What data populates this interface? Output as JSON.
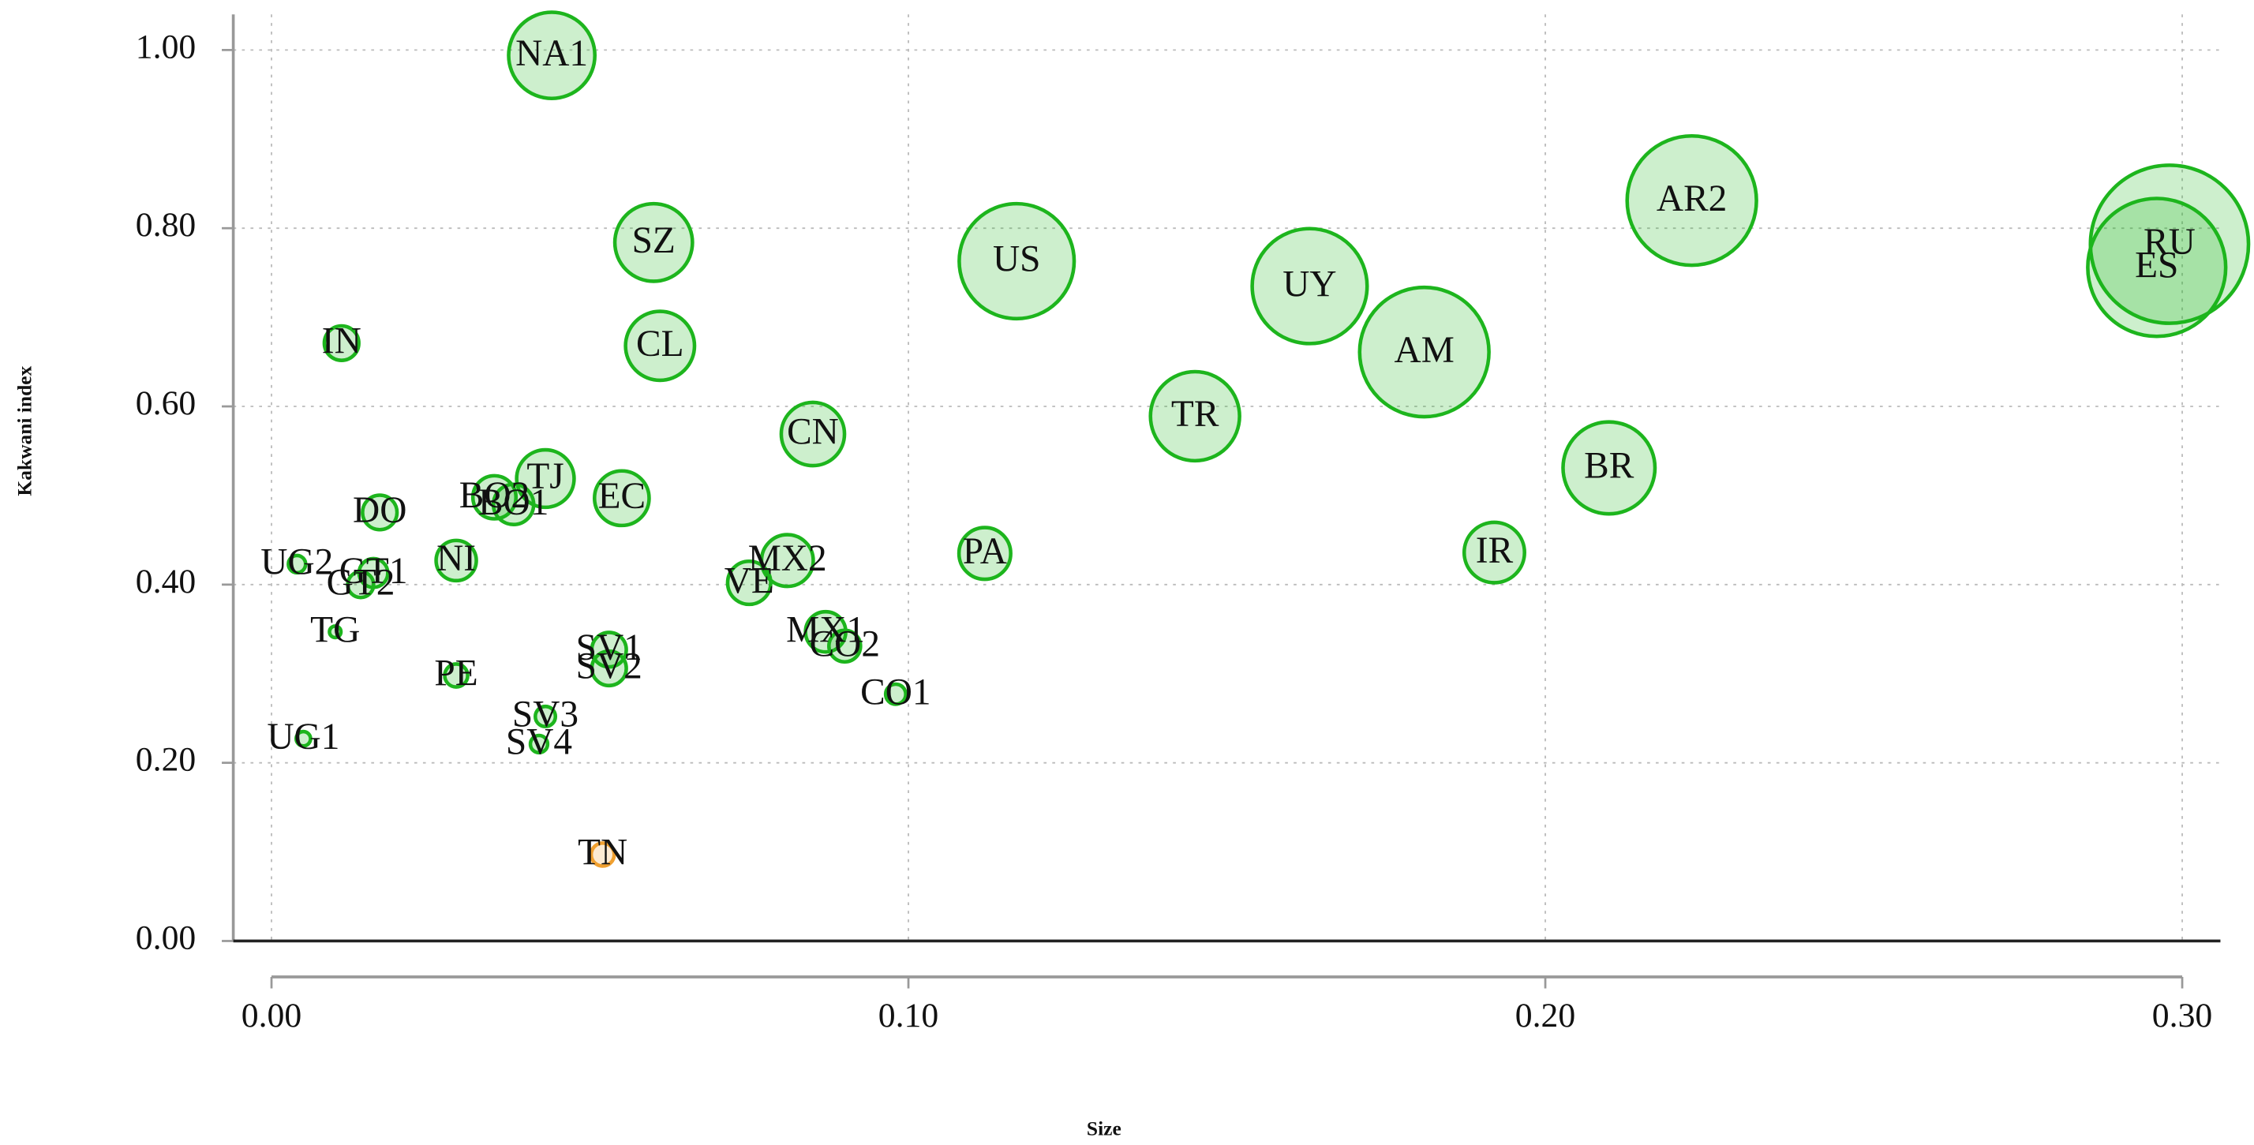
{
  "chart_data": {
    "type": "scatter",
    "xlabel": "Size",
    "ylabel": "Kakwani index",
    "xlim": [
      -0.006,
      0.306
    ],
    "ylim": [
      0,
      1.04
    ],
    "xticks": [
      {
        "value": 0,
        "label": "0.00"
      },
      {
        "value": 0.1,
        "label": "0.10"
      },
      {
        "value": 0.2,
        "label": "0.20"
      },
      {
        "value": 0.3,
        "label": "0.30"
      }
    ],
    "yticks": [
      {
        "value": 0,
        "label": "0.00"
      },
      {
        "value": 0.2,
        "label": "0.20"
      },
      {
        "value": 0.4,
        "label": "0.40"
      },
      {
        "value": 0.6,
        "label": "0.60"
      },
      {
        "value": 0.8,
        "label": "0.80"
      },
      {
        "value": 1,
        "label": "1.00"
      }
    ],
    "grid": true,
    "points": [
      {
        "label": "RU",
        "x": 0.298,
        "y": 0.782,
        "size": 55,
        "color": "#1db51d"
      },
      {
        "label": "ES",
        "x": 0.296,
        "y": 0.756,
        "size": 48,
        "color": "#1db51d"
      },
      {
        "label": "AR2",
        "x": 0.223,
        "y": 0.831,
        "size": 45,
        "color": "#1db51d"
      },
      {
        "label": "AM",
        "x": 0.181,
        "y": 0.661,
        "size": 45,
        "color": "#1db51d"
      },
      {
        "label": "UY",
        "x": 0.163,
        "y": 0.735,
        "size": 40,
        "color": "#1db51d"
      },
      {
        "label": "US",
        "x": 0.117,
        "y": 0.763,
        "size": 40,
        "color": "#1db51d"
      },
      {
        "label": "BR",
        "x": 0.21,
        "y": 0.531,
        "size": 32,
        "color": "#1db51d"
      },
      {
        "label": "TR",
        "x": 0.145,
        "y": 0.589,
        "size": 31,
        "color": "#1db51d"
      },
      {
        "label": "NA1",
        "x": 0.044,
        "y": 0.994,
        "size": 30,
        "color": "#1db51d"
      },
      {
        "label": "SZ",
        "x": 0.06,
        "y": 0.784,
        "size": 27,
        "color": "#1db51d"
      },
      {
        "label": "CL",
        "x": 0.061,
        "y": 0.668,
        "size": 24,
        "color": "#1db51d"
      },
      {
        "label": "CN",
        "x": 0.085,
        "y": 0.569,
        "size": 22,
        "color": "#1db51d"
      },
      {
        "label": "IR",
        "x": 0.192,
        "y": 0.436,
        "size": 21,
        "color": "#1db51d"
      },
      {
        "label": "TJ",
        "x": 0.043,
        "y": 0.519,
        "size": 20,
        "color": "#1db51d"
      },
      {
        "label": "EC",
        "x": 0.055,
        "y": 0.497,
        "size": 19,
        "color": "#1db51d"
      },
      {
        "label": "PA",
        "x": 0.112,
        "y": 0.435,
        "size": 18,
        "color": "#1db51d"
      },
      {
        "label": "MX2",
        "x": 0.081,
        "y": 0.427,
        "size": 18,
        "color": "#1db51d"
      },
      {
        "label": "BO2",
        "x": 0.035,
        "y": 0.498,
        "size": 15,
        "color": "#1db51d"
      },
      {
        "label": "VE",
        "x": 0.075,
        "y": 0.402,
        "size": 15,
        "color": "#1db51d"
      },
      {
        "label": "BO1",
        "x": 0.038,
        "y": 0.49,
        "size": 14,
        "color": "#1db51d"
      },
      {
        "label": "NI",
        "x": 0.029,
        "y": 0.427,
        "size": 14,
        "color": "#1db51d"
      },
      {
        "label": "MX1",
        "x": 0.087,
        "y": 0.347,
        "size": 14,
        "color": "#1db51d"
      },
      {
        "label": "IN",
        "x": 0.011,
        "y": 0.671,
        "size": 12,
        "color": "#1db51d"
      },
      {
        "label": "DO",
        "x": 0.017,
        "y": 0.481,
        "size": 12,
        "color": "#1db51d"
      },
      {
        "label": "SV1",
        "x": 0.053,
        "y": 0.327,
        "size": 12,
        "color": "#1db51d"
      },
      {
        "label": "SV2",
        "x": 0.053,
        "y": 0.306,
        "size": 12,
        "color": "#1db51d"
      },
      {
        "label": "CO2",
        "x": 0.09,
        "y": 0.331,
        "size": 11,
        "color": "#1db51d"
      },
      {
        "label": "GT1",
        "x": 0.016,
        "y": 0.413,
        "size": 10,
        "color": "#1db51d"
      },
      {
        "label": "GT2",
        "x": 0.014,
        "y": 0.4,
        "size": 9,
        "color": "#1db51d"
      },
      {
        "label": "PE",
        "x": 0.029,
        "y": 0.298,
        "size": 8,
        "color": "#1db51d"
      },
      {
        "label": "TN",
        "x": 0.052,
        "y": 0.097,
        "size": 8,
        "color": "#f0a030"
      },
      {
        "label": "SV3",
        "x": 0.043,
        "y": 0.252,
        "size": 7,
        "color": "#1db51d"
      },
      {
        "label": "CO1",
        "x": 0.098,
        "y": 0.277,
        "size": 7,
        "color": "#1db51d"
      },
      {
        "label": "UG2",
        "x": 0.004,
        "y": 0.423,
        "size": 6,
        "color": "#1db51d"
      },
      {
        "label": "SV4",
        "x": 0.042,
        "y": 0.221,
        "size": 6,
        "color": "#1db51d"
      },
      {
        "label": "UG1",
        "x": 0.005,
        "y": 0.227,
        "size": 5,
        "color": "#1db51d"
      },
      {
        "label": "TG",
        "x": 0.01,
        "y": 0.347,
        "size": 4,
        "color": "#1db51d"
      }
    ]
  }
}
